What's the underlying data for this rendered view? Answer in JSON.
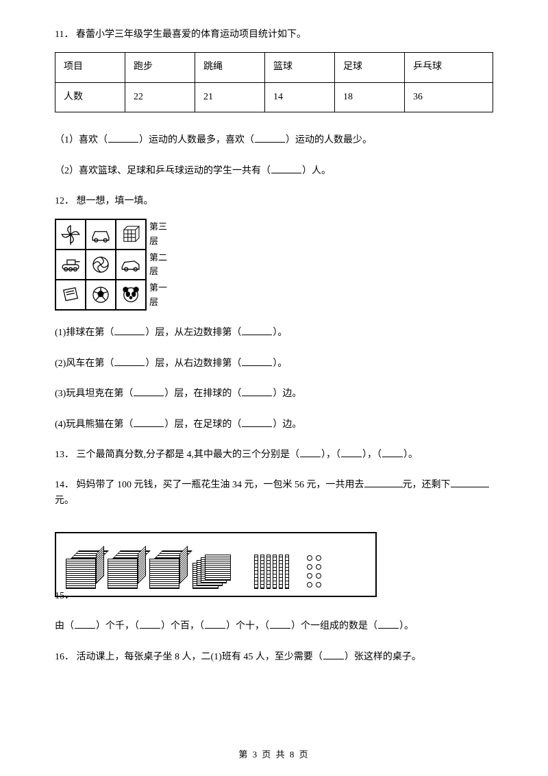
{
  "q11": {
    "number": "11",
    "text": "春蕾小学三年级学生最喜爱的体育运动项目统计如下。",
    "table": {
      "headers": [
        "项目",
        "跑步",
        "跳绳",
        "篮球",
        "足球",
        "乒乓球"
      ],
      "row_label": "人数",
      "values": [
        "22",
        "21",
        "14",
        "18",
        "36"
      ]
    },
    "sub1": {
      "prefix": "（1）喜欢（",
      "mid": "）运动的人数最多，喜欢（",
      "suffix": "）运动的人数最少。"
    },
    "sub2": {
      "prefix": "（2）喜欢篮球、足球和乒乓球运动的学生一共有（",
      "suffix": "）人。"
    }
  },
  "q12": {
    "number": "12",
    "text": "想一想，填一填。",
    "grid": {
      "layer3": [
        "pinwheel",
        "car-blue",
        "cube"
      ],
      "layer2": [
        "tank",
        "volleyball",
        "car"
      ],
      "layer1": [
        "book",
        "soccer",
        "panda"
      ],
      "labels": {
        "l3a": "第三",
        "l3b": "层",
        "l2a": "第二",
        "l2b": "层",
        "l1a": "第一",
        "l1b": "层"
      }
    },
    "sub1": "(1)排球在第（",
    "sub1_mid": "）层，从左边数排第（",
    "sub1_end": "）。",
    "sub2": "(2)风车在第（",
    "sub2_mid": "）层，从右边数排第（",
    "sub2_end": "）。",
    "sub3": "(3)玩具坦克在第（",
    "sub3_mid": "）层，在排球的（",
    "sub3_end": "）边。",
    "sub4": "(4)玩具熊猫在第（",
    "sub4_mid": "）层，在足球的（",
    "sub4_end": "）边。"
  },
  "q13": {
    "number": "13",
    "text": "三个最简真分数,分子都是 4,其中最大的三个分别是（",
    "mid1": "），（",
    "mid2": "），（",
    "end": "）。"
  },
  "q14": {
    "number": "14",
    "text_pre": "妈妈带了 100 元钱，买了一瓶花生油 34 元，一包米 56 元，一共用去",
    "text_mid": "元，还剩下",
    "text_end": "元。"
  },
  "q15": {
    "number": "15",
    "blocks": {
      "thousands": 3,
      "hundreds": 4,
      "tens": 6,
      "ones": 8
    },
    "text_pre": "由（",
    "m1": "）个千，（",
    "m2": "）个百，（",
    "m3": "）个十，（",
    "m4": "）个一组成的数是（",
    "end": "）。"
  },
  "q16": {
    "number": "16",
    "text_pre": "活动课上，每张桌子坐 8 人，二(1)班有 45 人，至少需要（",
    "text_end": "）张这样的桌子。"
  },
  "footer": {
    "text": "第 3 页 共 8 页"
  },
  "punct": {
    "dot": "．"
  }
}
